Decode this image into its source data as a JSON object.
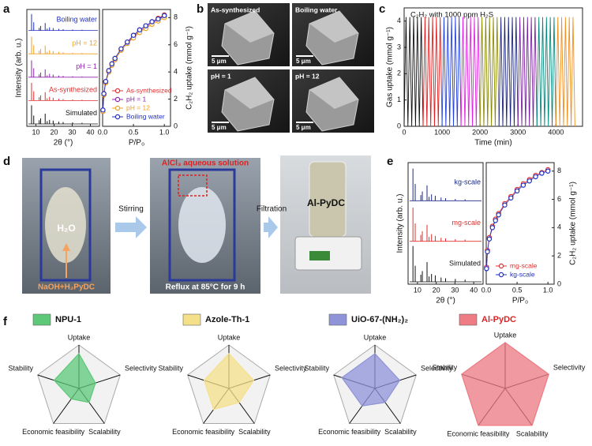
{
  "panel_labels": [
    "a",
    "b",
    "c",
    "d",
    "e",
    "f"
  ],
  "sem": {
    "images": [
      "As-synthesized",
      "Boiling water",
      "pH = 1",
      "pH = 12"
    ],
    "scale_bar": "5 μm"
  },
  "process": {
    "water": "H₂O",
    "reagents": "NaOH+H₂PyDC",
    "arrow1": "Stirring",
    "additive": "AlCl₃ aqueous solution",
    "condition": "Reflux at 85°C for 9 h",
    "arrow2": "Filtration",
    "product": "Al-PyDC"
  },
  "chart_data": [
    {
      "type": "stem",
      "xlabel": "2θ (°)",
      "ylabel": "Intensity (arb. u.)",
      "xlim": [
        5,
        45
      ],
      "xticks": [
        10,
        20,
        30,
        40
      ],
      "ylim": [
        0,
        100
      ],
      "x": [
        7.6,
        8.8,
        11.8,
        12.6,
        15.1,
        16.2,
        17.5,
        19.5,
        22.6,
        25.0,
        30.2,
        35.4
      ],
      "series": [
        {
          "name": "Simulated",
          "color": "#111111",
          "values": [
            100,
            45,
            20,
            30,
            55,
            15,
            22,
            18,
            12,
            10,
            8,
            6
          ]
        },
        {
          "name": "As-synthesized",
          "color": "#e03030",
          "values": [
            95,
            50,
            18,
            28,
            45,
            12,
            20,
            15,
            10,
            8,
            6,
            5
          ]
        },
        {
          "name": "pH = 1",
          "color": "#8e24aa",
          "values": [
            90,
            48,
            15,
            25,
            42,
            10,
            18,
            14,
            9,
            7,
            5,
            4
          ]
        },
        {
          "name": "pH = 12",
          "color": "#f0a020",
          "values": [
            92,
            46,
            16,
            26,
            44,
            11,
            19,
            15,
            10,
            8,
            6,
            5
          ]
        },
        {
          "name": "Boiling water",
          "color": "#2030c0",
          "values": [
            88,
            44,
            14,
            24,
            40,
            10,
            17,
            13,
            9,
            7,
            5,
            4
          ]
        }
      ]
    },
    {
      "type": "line",
      "xlabel": "P/P₀",
      "ylabel": "C₂H₂ uptake (mmol g⁻¹)",
      "xlim": [
        0,
        1.1
      ],
      "xticks": [
        {
          "value": 0,
          "label": "0.0"
        },
        0.5,
        {
          "value": 1,
          "label": "1.0"
        }
      ],
      "ylim": [
        0,
        8.6
      ],
      "yticks": [
        0,
        2,
        4,
        6,
        8
      ],
      "y_side": "right",
      "markers": true,
      "legend": "lower right",
      "x": [
        0.005,
        0.02,
        0.05,
        0.1,
        0.15,
        0.2,
        0.3,
        0.4,
        0.5,
        0.6,
        0.7,
        0.8,
        0.9,
        1.0
      ],
      "series": [
        {
          "name": "As-synthesized",
          "color": "#e03030",
          "values": [
            1.2,
            2.4,
            3.3,
            4.1,
            4.6,
            5.0,
            5.7,
            6.2,
            6.7,
            7.1,
            7.4,
            7.7,
            7.95,
            8.2
          ]
        },
        {
          "name": "pH = 1",
          "color": "#8e24aa",
          "values": [
            1.1,
            2.3,
            3.2,
            4.0,
            4.5,
            4.9,
            5.6,
            6.1,
            6.6,
            7.0,
            7.3,
            7.6,
            7.85,
            8.1
          ]
        },
        {
          "name": "pH = 12",
          "color": "#f0a020",
          "values": [
            1.1,
            2.3,
            3.2,
            4.0,
            4.5,
            4.9,
            5.6,
            6.1,
            6.5,
            6.9,
            7.2,
            7.5,
            7.75,
            8.0
          ]
        },
        {
          "name": "Boiling water",
          "color": "#2030c0",
          "values": [
            1.2,
            2.4,
            3.3,
            4.1,
            4.6,
            5.0,
            5.7,
            6.2,
            6.7,
            7.1,
            7.4,
            7.7,
            7.9,
            8.15
          ]
        }
      ]
    },
    {
      "type": "line",
      "title": "C₂H₂ with 1000 ppm H₂S",
      "xlabel": "Time (min)",
      "ylabel": "Gas uptake (mmol g⁻¹)",
      "xlim": [
        0,
        4700
      ],
      "xticks": [
        0,
        1000,
        2000,
        3000,
        4000
      ],
      "ylim": [
        0,
        4.5
      ],
      "yticks": [
        0,
        1,
        2,
        3,
        4
      ],
      "y_side": "left",
      "markers": false,
      "series": [
        {
          "color": "#111111",
          "x": [
            0,
            50,
            100,
            150,
            200,
            250,
            300,
            350,
            400,
            450,
            500
          ],
          "values": [
            0,
            4.15,
            0,
            4.15,
            0,
            4.15,
            0,
            4.15,
            0,
            4.15,
            0
          ]
        },
        {
          "color": "#e02020",
          "x": [
            500,
            550,
            600,
            650,
            700,
            750,
            800,
            850,
            900,
            950,
            1000
          ],
          "values": [
            0,
            4.15,
            0,
            4.15,
            0,
            4.15,
            0,
            4.15,
            0,
            4.15,
            0
          ]
        },
        {
          "color": "#2040e0",
          "x": [
            1000,
            1050,
            1100,
            1150,
            1200,
            1250,
            1300,
            1350,
            1400,
            1450,
            1500
          ],
          "values": [
            0,
            4.15,
            0,
            4.15,
            0,
            4.15,
            0,
            4.15,
            0,
            4.15,
            0
          ]
        },
        {
          "color": "#e020e0",
          "x": [
            1500,
            1550,
            1600,
            1650,
            1700,
            1750,
            1800,
            1850,
            1900,
            1950,
            2000
          ],
          "values": [
            0,
            4.15,
            0,
            4.15,
            0,
            4.15,
            0,
            4.15,
            0,
            4.15,
            0
          ]
        },
        {
          "color": "#8a8a00",
          "x": [
            2000,
            2050,
            2100,
            2150,
            2200,
            2250,
            2300,
            2350,
            2400,
            2450,
            2500
          ],
          "values": [
            0,
            4.15,
            0,
            4.15,
            0,
            4.15,
            0,
            4.15,
            0,
            4.15,
            0
          ]
        },
        {
          "color": "#1a237e",
          "x": [
            2500,
            2550,
            2600,
            2650,
            2700,
            2750,
            2800,
            2850,
            2900,
            2950,
            3000
          ],
          "values": [
            0,
            4.15,
            0,
            4.15,
            0,
            4.15,
            0,
            4.15,
            0,
            4.15,
            0
          ]
        },
        {
          "color": "#7b1fa2",
          "x": [
            3000,
            3050,
            3100,
            3150,
            3200,
            3250,
            3300,
            3350,
            3400,
            3450,
            3500
          ],
          "values": [
            0,
            4.15,
            0,
            4.15,
            0,
            4.15,
            0,
            4.15,
            0,
            4.15,
            0
          ]
        },
        {
          "color": "#00897b",
          "x": [
            3500,
            3550,
            3600,
            3650,
            3700,
            3750,
            3800,
            3850,
            3900,
            3950,
            4000
          ],
          "values": [
            0,
            4.15,
            0,
            4.15,
            0,
            4.15,
            0,
            4.15,
            0,
            4.15,
            0
          ]
        },
        {
          "color": "#f09020",
          "x": [
            4000,
            4050,
            4100,
            4150,
            4200,
            4250,
            4300,
            4350,
            4400,
            4450,
            4500
          ],
          "values": [
            0,
            4.15,
            0,
            4.15,
            0,
            4.15,
            0,
            4.15,
            0,
            4.15,
            0
          ]
        }
      ]
    },
    {
      "type": "stem",
      "xlabel": "2θ (°)",
      "ylabel": "Intensity (arb. u.)",
      "xlim": [
        5,
        45
      ],
      "xticks": [
        10,
        20,
        30,
        40
      ],
      "ylim": [
        0,
        100
      ],
      "x": [
        7.6,
        8.8,
        11.8,
        12.6,
        15.1,
        16.2,
        17.5,
        19.5,
        22.6,
        25.0,
        30.2,
        35.4
      ],
      "series": [
        {
          "name": "Simulated",
          "color": "#111111",
          "values": [
            100,
            45,
            20,
            30,
            55,
            15,
            22,
            18,
            12,
            10,
            8,
            6
          ]
        },
        {
          "name": "mg-scale",
          "color": "#e03030",
          "values": [
            94,
            50,
            18,
            28,
            46,
            12,
            20,
            15,
            10,
            8,
            6,
            5
          ]
        },
        {
          "name": "kg-scale",
          "color": "#1a2a8a",
          "values": [
            90,
            47,
            16,
            26,
            43,
            11,
            18,
            14,
            9,
            7,
            5,
            4
          ]
        }
      ]
    },
    {
      "type": "line",
      "xlabel": "P/P₀",
      "ylabel": "C₂H₂ uptake (mmol g⁻¹)",
      "xlim": [
        0,
        1.1
      ],
      "xticks": [
        {
          "value": 0,
          "label": "0.0"
        },
        0.5,
        {
          "value": 1,
          "label": "1.0"
        }
      ],
      "ylim": [
        0,
        8.6
      ],
      "yticks": [
        0,
        2,
        4,
        6,
        8
      ],
      "y_side": "right",
      "markers": true,
      "legend": "lower right",
      "x": [
        0.005,
        0.02,
        0.05,
        0.1,
        0.15,
        0.2,
        0.3,
        0.4,
        0.5,
        0.6,
        0.7,
        0.8,
        0.9,
        1.0
      ],
      "series": [
        {
          "name": "mg-scale",
          "color": "#e03030",
          "values": [
            1.2,
            2.4,
            3.3,
            4.1,
            4.6,
            5.0,
            5.7,
            6.2,
            6.7,
            7.1,
            7.4,
            7.7,
            7.9,
            8.1
          ]
        },
        {
          "name": "kg-scale",
          "color": "#2030c0",
          "values": [
            1.1,
            2.3,
            3.2,
            4.0,
            4.5,
            4.9,
            5.6,
            6.1,
            6.6,
            7.0,
            7.3,
            7.6,
            7.85,
            8.0
          ]
        }
      ]
    },
    {
      "type": "radar",
      "title": "NPU-1",
      "title_color": "#111111",
      "color": "#5cc878",
      "categories": [
        "Uptake",
        "Selectivity",
        "Scalability",
        "Economic feasibility",
        "Stability"
      ],
      "values": [
        4,
        2,
        2,
        1.5,
        3
      ],
      "rlim": [
        0,
        5
      ],
      "rticks": [
        1,
        2,
        3,
        4,
        5
      ]
    },
    {
      "type": "radar",
      "title": "Azole-Th-1",
      "title_color": "#111111",
      "color": "#f5e08a",
      "categories": [
        "Uptake",
        "Selectivity",
        "Scalability",
        "Economic feasibility",
        "Stability"
      ],
      "values": [
        4,
        3,
        2,
        3,
        3
      ],
      "rlim": [
        0,
        5
      ],
      "rticks": [
        1,
        2,
        3,
        4,
        5
      ]
    },
    {
      "type": "radar",
      "title": "UiO-67-(NH₂)₂",
      "title_color": "#111111",
      "color": "#8f93d8",
      "categories": [
        "Uptake",
        "Selectivity",
        "Scalability",
        "Economic feasibility",
        "Stability"
      ],
      "values": [
        4,
        3,
        2,
        2.5,
        4
      ],
      "rlim": [
        0,
        5
      ],
      "rticks": [
        1,
        2,
        3,
        4,
        5
      ]
    },
    {
      "type": "radar",
      "title": "Al-PyDC",
      "title_color": "#d62728",
      "color": "#ef7b84",
      "categories": [
        "Uptake",
        "Selectivity",
        "Scalability",
        "Economic feasibility",
        "Stability"
      ],
      "values": [
        5,
        5,
        5,
        5,
        5
      ],
      "rlim": [
        0,
        5
      ],
      "rticks": [
        1,
        2,
        3,
        4,
        5
      ]
    }
  ]
}
